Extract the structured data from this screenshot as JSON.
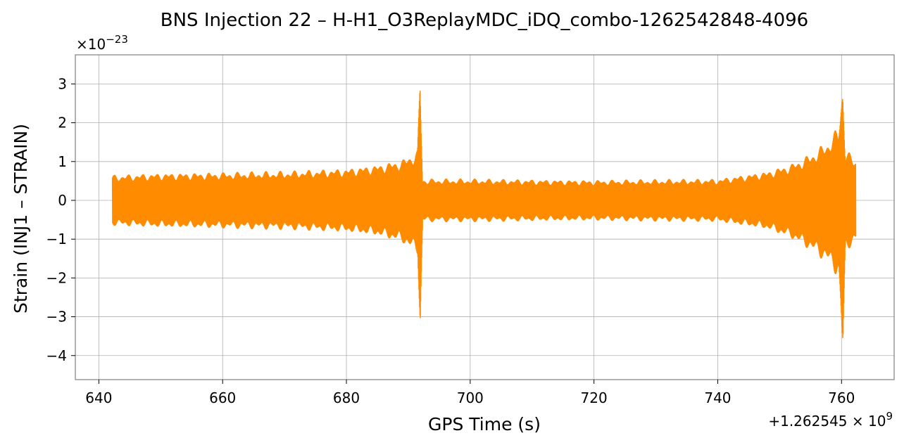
{
  "chart_data": {
    "type": "line",
    "title": "BNS Injection 22 – H-H1_O3ReplayMDC_iDQ_combo-1262542848-4096",
    "xlabel": "GPS Time (s)",
    "ylabel": "Strain (INJ1 – STRAIN)",
    "x_offset_label": "+1.262545 × 10",
    "x_offset_exp": "9",
    "y_scale_label": "×10",
    "y_scale_exp": "−23",
    "xlim": [
      636.2,
      768.5
    ],
    "ylim": [
      -4.62,
      3.75
    ],
    "grid": true,
    "x_ticks": [
      640,
      660,
      680,
      700,
      720,
      740,
      760
    ],
    "x_tick_labels": [
      "640",
      "660",
      "680",
      "700",
      "720",
      "740",
      "760"
    ],
    "y_ticks": [
      3,
      2,
      1,
      0,
      -1,
      -2,
      -3,
      -4
    ],
    "y_tick_labels": [
      "3",
      "2",
      "1",
      "0",
      "−1",
      "−2",
      "−3",
      "−4"
    ],
    "series": [
      {
        "color": "#ff8c00",
        "x_range": [
          642.2,
          762.3
        ],
        "envelope": [
          {
            "x": 642.2,
            "upper": 0.65,
            "lower": -0.65
          },
          {
            "x": 650,
            "upper": 0.7,
            "lower": -0.7
          },
          {
            "x": 660,
            "upper": 0.72,
            "lower": -0.72
          },
          {
            "x": 670,
            "upper": 0.75,
            "lower": -0.75
          },
          {
            "x": 680,
            "upper": 0.82,
            "lower": -0.82
          },
          {
            "x": 685,
            "upper": 0.92,
            "lower": -0.92
          },
          {
            "x": 689,
            "upper": 1.05,
            "lower": -1.1
          },
          {
            "x": 691.5,
            "upper": 1.3,
            "lower": -1.4
          },
          {
            "x": 691.9,
            "upper": 3.35,
            "lower": -3.6
          },
          {
            "x": 692.3,
            "upper": 0.55,
            "lower": -0.55
          },
          {
            "x": 700,
            "upper": 0.55,
            "lower": -0.55
          },
          {
            "x": 720,
            "upper": 0.52,
            "lower": -0.52
          },
          {
            "x": 740,
            "upper": 0.55,
            "lower": -0.55
          },
          {
            "x": 748,
            "upper": 0.75,
            "lower": -0.75
          },
          {
            "x": 752,
            "upper": 0.95,
            "lower": -1.0
          },
          {
            "x": 755,
            "upper": 1.2,
            "lower": -1.3
          },
          {
            "x": 757.5,
            "upper": 1.5,
            "lower": -1.6
          },
          {
            "x": 759.5,
            "upper": 1.9,
            "lower": -2.0
          },
          {
            "x": 760.2,
            "upper": 3.1,
            "lower": -4.25
          },
          {
            "x": 760.6,
            "upper": 1.3,
            "lower": -1.3
          },
          {
            "x": 762.3,
            "upper": 1.1,
            "lower": -1.1
          }
        ]
      }
    ]
  }
}
